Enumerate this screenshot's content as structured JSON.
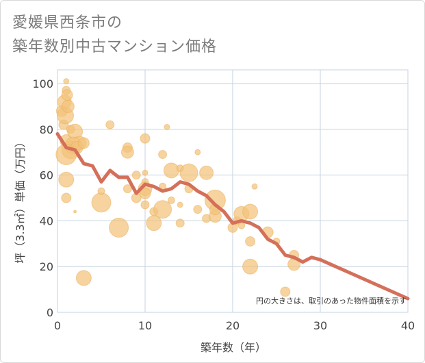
{
  "title_lines": [
    "愛媛県西条市の",
    "築年数別中古マンション価格"
  ],
  "chart_data": {
    "type": "scatter",
    "xlabel": "築年数（年）",
    "ylabel": "坪（3.3㎡）単価（万円）",
    "xlim": [
      0,
      40
    ],
    "ylim": [
      0,
      100
    ],
    "x_ticks": [
      0,
      10,
      20,
      30,
      40
    ],
    "y_ticks": [
      0,
      20,
      40,
      60,
      80,
      100
    ],
    "grid": true,
    "note": "円の大きさは、取引のあった物件面積を示す",
    "colors": {
      "bubble": "#f2c27a",
      "bubble_stroke": "#e8ad55",
      "line": "#d4705a",
      "grid": "#c5d3df",
      "text": "#444444"
    },
    "bubbles": [
      {
        "x": 0.5,
        "y": 88,
        "s": 8
      },
      {
        "x": 0.8,
        "y": 92,
        "s": 10
      },
      {
        "x": 1,
        "y": 101,
        "s": 4
      },
      {
        "x": 1,
        "y": 97,
        "s": 6
      },
      {
        "x": 0.7,
        "y": 82,
        "s": 7
      },
      {
        "x": 0.9,
        "y": 86,
        "s": 12
      },
      {
        "x": 1.2,
        "y": 90,
        "s": 9
      },
      {
        "x": 1.1,
        "y": 95,
        "s": 8
      },
      {
        "x": 1.5,
        "y": 80,
        "s": 6
      },
      {
        "x": 1,
        "y": 75,
        "s": 9
      },
      {
        "x": 1.5,
        "y": 71,
        "s": 13
      },
      {
        "x": 2,
        "y": 79,
        "s": 11
      },
      {
        "x": 2.5,
        "y": 74,
        "s": 10
      },
      {
        "x": 1.8,
        "y": 73,
        "s": 12
      },
      {
        "x": 2.2,
        "y": 72,
        "s": 9
      },
      {
        "x": 1,
        "y": 69,
        "s": 15
      },
      {
        "x": 3,
        "y": 74,
        "s": 8
      },
      {
        "x": 1,
        "y": 58,
        "s": 11
      },
      {
        "x": 1,
        "y": 50,
        "s": 7
      },
      {
        "x": 2,
        "y": 44,
        "s": 2
      },
      {
        "x": 3,
        "y": 15,
        "s": 11
      },
      {
        "x": 5,
        "y": 48,
        "s": 14
      },
      {
        "x": 5,
        "y": 53,
        "s": 5
      },
      {
        "x": 6,
        "y": 82,
        "s": 6
      },
      {
        "x": 7,
        "y": 37,
        "s": 14
      },
      {
        "x": 8,
        "y": 72,
        "s": 7
      },
      {
        "x": 8,
        "y": 70,
        "s": 9
      },
      {
        "x": 8,
        "y": 54,
        "s": 6
      },
      {
        "x": 9,
        "y": 60,
        "s": 6
      },
      {
        "x": 9,
        "y": 50,
        "s": 7
      },
      {
        "x": 10,
        "y": 76,
        "s": 7
      },
      {
        "x": 10,
        "y": 57,
        "s": 5
      },
      {
        "x": 10,
        "y": 54,
        "s": 10
      },
      {
        "x": 10,
        "y": 52,
        "s": 8
      },
      {
        "x": 10,
        "y": 47,
        "s": 6
      },
      {
        "x": 10,
        "y": 61,
        "s": 4
      },
      {
        "x": 11,
        "y": 39,
        "s": 11
      },
      {
        "x": 11,
        "y": 44,
        "s": 6
      },
      {
        "x": 12,
        "y": 45,
        "s": 13
      },
      {
        "x": 12,
        "y": 55,
        "s": 5
      },
      {
        "x": 12,
        "y": 69,
        "s": 6
      },
      {
        "x": 12.5,
        "y": 81,
        "s": 4
      },
      {
        "x": 13,
        "y": 62,
        "s": 11
      },
      {
        "x": 13,
        "y": 49,
        "s": 5
      },
      {
        "x": 14,
        "y": 47,
        "s": 4
      },
      {
        "x": 14,
        "y": 39,
        "s": 6
      },
      {
        "x": 14,
        "y": 63,
        "s": 5
      },
      {
        "x": 15,
        "y": 61,
        "s": 13
      },
      {
        "x": 15,
        "y": 54,
        "s": 6
      },
      {
        "x": 16,
        "y": 70,
        "s": 4
      },
      {
        "x": 16,
        "y": 45,
        "s": 6
      },
      {
        "x": 17,
        "y": 61,
        "s": 10
      },
      {
        "x": 17,
        "y": 41,
        "s": 6
      },
      {
        "x": 18,
        "y": 49,
        "s": 15
      },
      {
        "x": 18,
        "y": 42,
        "s": 9
      },
      {
        "x": 18,
        "y": 45,
        "s": 8
      },
      {
        "x": 20,
        "y": 37,
        "s": 7
      },
      {
        "x": 20.5,
        "y": 40,
        "s": 6
      },
      {
        "x": 21,
        "y": 38,
        "s": 5
      },
      {
        "x": 21,
        "y": 43,
        "s": 11
      },
      {
        "x": 22,
        "y": 44,
        "s": 11
      },
      {
        "x": 22,
        "y": 31,
        "s": 7
      },
      {
        "x": 22,
        "y": 20,
        "s": 11
      },
      {
        "x": 22.5,
        "y": 55,
        "s": 4
      },
      {
        "x": 24,
        "y": 35,
        "s": 8
      },
      {
        "x": 25,
        "y": 31,
        "s": 5
      },
      {
        "x": 26,
        "y": 9,
        "s": 7
      },
      {
        "x": 27,
        "y": 21,
        "s": 9
      },
      {
        "x": 27,
        "y": 25,
        "s": 7
      }
    ],
    "line": {
      "x": [
        0,
        1,
        2,
        3,
        4,
        5,
        6,
        7,
        8,
        9,
        10,
        11,
        12,
        13,
        14,
        15,
        16,
        17,
        18,
        19,
        20,
        21,
        22,
        23,
        24,
        25,
        26,
        27,
        28,
        29,
        30,
        40
      ],
      "y": [
        78,
        72,
        71,
        65,
        64,
        57,
        62,
        59,
        59,
        52,
        56,
        55,
        53,
        54,
        57,
        56,
        53,
        51,
        47,
        44,
        39,
        40,
        39,
        37,
        32,
        30,
        25,
        24,
        22,
        24,
        23,
        6
      ]
    }
  }
}
